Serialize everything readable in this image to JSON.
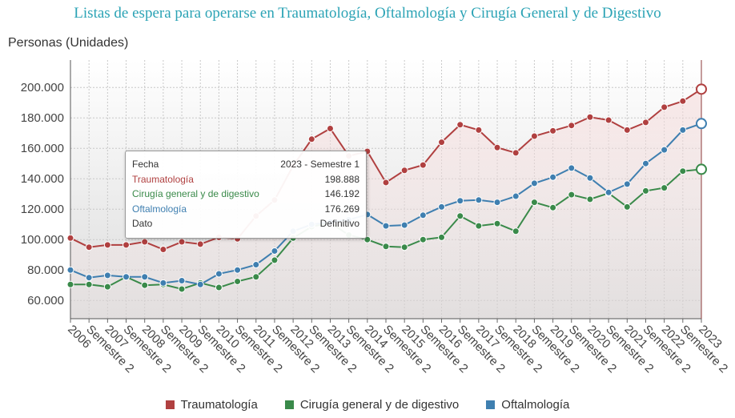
{
  "chart_data": {
    "type": "line",
    "title": "Listas de espera para operarse en Traumatología, Oftalmología y Cirugía General y de Digestivo",
    "ylabel": "Personas (Unidades)",
    "xlabel": "",
    "ylim": [
      48000,
      218000
    ],
    "yticks": [
      60000,
      80000,
      100000,
      120000,
      140000,
      160000,
      180000,
      200000
    ],
    "ytick_labels": [
      "60.000",
      "80.000",
      "100.000",
      "120.000",
      "140.000",
      "160.000",
      "180.000",
      "200.000"
    ],
    "x": [
      "2006",
      "Semestre 2",
      "2007",
      "Semestre 2",
      "2008",
      "Semestre 2",
      "2009",
      "Semestre 2",
      "2010",
      "Semestre 2",
      "2011",
      "Semestre 2",
      "2012",
      "Semestre 2",
      "2013",
      "Semestre 2",
      "2014",
      "Semestre 2",
      "2015",
      "Semestre 2",
      "2016",
      "Semestre 2",
      "2017",
      "Semestre 2",
      "2018",
      "Semestre 2",
      "2019",
      "Semestre 2",
      "2020",
      "Semestre 2",
      "2021",
      "Semestre 2",
      "2022",
      "Semestre 2",
      "2023"
    ],
    "grid": true,
    "legend_position": "bottom",
    "series": [
      {
        "name": "Traumatología",
        "color": "#b04040",
        "values": [
          101000,
          95000,
          96500,
          96500,
          98500,
          93500,
          98500,
          97000,
          101500,
          100500,
          115500,
          126000,
          148500,
          166000,
          173000,
          155000,
          158000,
          137500,
          145500,
          149000,
          164000,
          175500,
          172000,
          160500,
          157000,
          168000,
          171500,
          175000,
          180500,
          178500,
          172000,
          177000,
          187000,
          191000,
          198888
        ]
      },
      {
        "name": "Cirugía general y de digestivo",
        "color": "#3a8a4a",
        "values": [
          70500,
          70500,
          69000,
          75500,
          70000,
          70500,
          67500,
          71500,
          68500,
          72500,
          75500,
          86500,
          101000,
          108500,
          111000,
          103000,
          100000,
          95500,
          95000,
          100000,
          101500,
          115500,
          109000,
          110500,
          105500,
          124500,
          121000,
          129500,
          126500,
          130500,
          121500,
          132000,
          134000,
          145000,
          146192
        ]
      },
      {
        "name": "Oftalmología",
        "color": "#3f7fb0",
        "values": [
          80000,
          75000,
          76500,
          75500,
          75500,
          71500,
          73000,
          70500,
          77500,
          80000,
          83500,
          92500,
          105500,
          110000,
          111500,
          113000,
          116500,
          109000,
          109500,
          116000,
          121500,
          125500,
          126000,
          124500,
          128500,
          137000,
          141000,
          147000,
          140500,
          131000,
          136500,
          150000,
          159000,
          172000,
          176269
        ]
      }
    ],
    "tooltip": {
      "rows": [
        {
          "label": "Fecha",
          "value": "2023 - Semestre 1",
          "color": "#333333"
        },
        {
          "label": "Traumatología",
          "value": "198.888",
          "color": "#b04040"
        },
        {
          "label": "Cirugía general y de digestivo",
          "value": "146.192",
          "color": "#3a8a4a"
        },
        {
          "label": "Oftalmología",
          "value": "176.269",
          "color": "#3f7fb0"
        },
        {
          "label": "Dato",
          "value": "Definitivo",
          "color": "#333333"
        }
      ]
    }
  }
}
